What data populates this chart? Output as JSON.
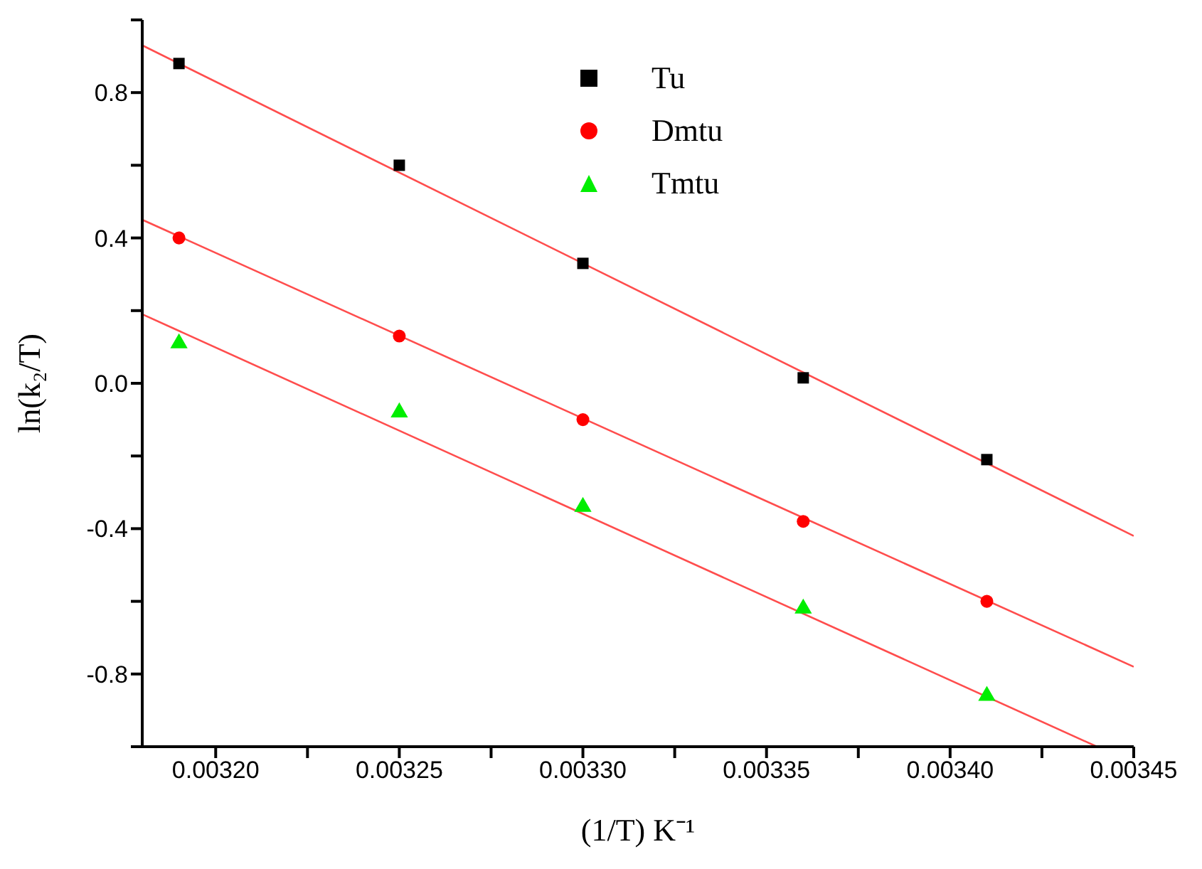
{
  "chart_data": {
    "type": "scatter",
    "xlabel": "(1/T) K⁻¹",
    "ylabel": "ln(k₂/T)",
    "xlim": [
      0.00318,
      0.00345
    ],
    "xticks": [
      {
        "value": 0.0032,
        "label": "0.00320"
      },
      {
        "value": 0.003225,
        "label": null
      },
      {
        "value": 0.00325,
        "label": "0.00325"
      },
      {
        "value": 0.003275,
        "label": null
      },
      {
        "value": 0.0033,
        "label": "0.00330"
      },
      {
        "value": 0.003325,
        "label": null
      },
      {
        "value": 0.00335,
        "label": "0.00335"
      },
      {
        "value": 0.003375,
        "label": null
      },
      {
        "value": 0.0034,
        "label": "0.00340"
      },
      {
        "value": 0.003425,
        "label": null
      },
      {
        "value": 0.00345,
        "label": "0.00345"
      }
    ],
    "ylim": [
      -1.0,
      1.0
    ],
    "yticks": [
      {
        "value": -1.0,
        "label": null
      },
      {
        "value": -0.8,
        "label": "-0.8"
      },
      {
        "value": -0.6,
        "label": null
      },
      {
        "value": -0.4,
        "label": "-0.4"
      },
      {
        "value": -0.2,
        "label": null
      },
      {
        "value": 0,
        "label": "0.0"
      },
      {
        "value": 0.2,
        "label": null
      },
      {
        "value": 0.4,
        "label": "0.4"
      },
      {
        "value": 0.6,
        "label": null
      },
      {
        "value": 0.8,
        "label": "0.8"
      },
      {
        "value": 1.0,
        "label": null
      }
    ],
    "grid": false,
    "legend": "top",
    "series": [
      {
        "name": "Tu",
        "marker": "square",
        "color": "#000000",
        "x": [
          0.00319,
          0.00325,
          0.0033,
          0.00336,
          0.00341
        ],
        "values": [
          0.88,
          0.6,
          0.33,
          0.015,
          -0.21
        ]
      },
      {
        "name": "Dmtu",
        "marker": "circle",
        "color": "#ff0000",
        "x": [
          0.00319,
          0.00325,
          0.0033,
          0.00336,
          0.00341
        ],
        "values": [
          0.4,
          0.13,
          -0.1,
          -0.38,
          -0.6
        ]
      },
      {
        "name": "Tmtu",
        "marker": "triangle",
        "color": "#00ee00",
        "x": [
          0.00319,
          0.00325,
          0.0033,
          0.00336,
          0.00341
        ],
        "values": [
          0.11,
          -0.08,
          -0.34,
          -0.62,
          -0.86
        ]
      },
      {
        "type": "line",
        "marker": "none",
        "line_style": "solid",
        "color": "#ff4d4d",
        "x": [
          0.00318,
          0.00345
        ],
        "values": [
          0.93,
          -0.42
        ]
      },
      {
        "type": "line",
        "marker": "none",
        "line_style": "solid",
        "color": "#ff4d4d",
        "x": [
          0.00318,
          0.00345
        ],
        "values": [
          0.45,
          -0.78
        ]
      },
      {
        "type": "line",
        "marker": "none",
        "line_style": "solid",
        "color": "#ff4d4d",
        "x": [
          0.00318,
          0.00344
        ],
        "values": [
          0.19,
          -1.0
        ]
      }
    ]
  }
}
